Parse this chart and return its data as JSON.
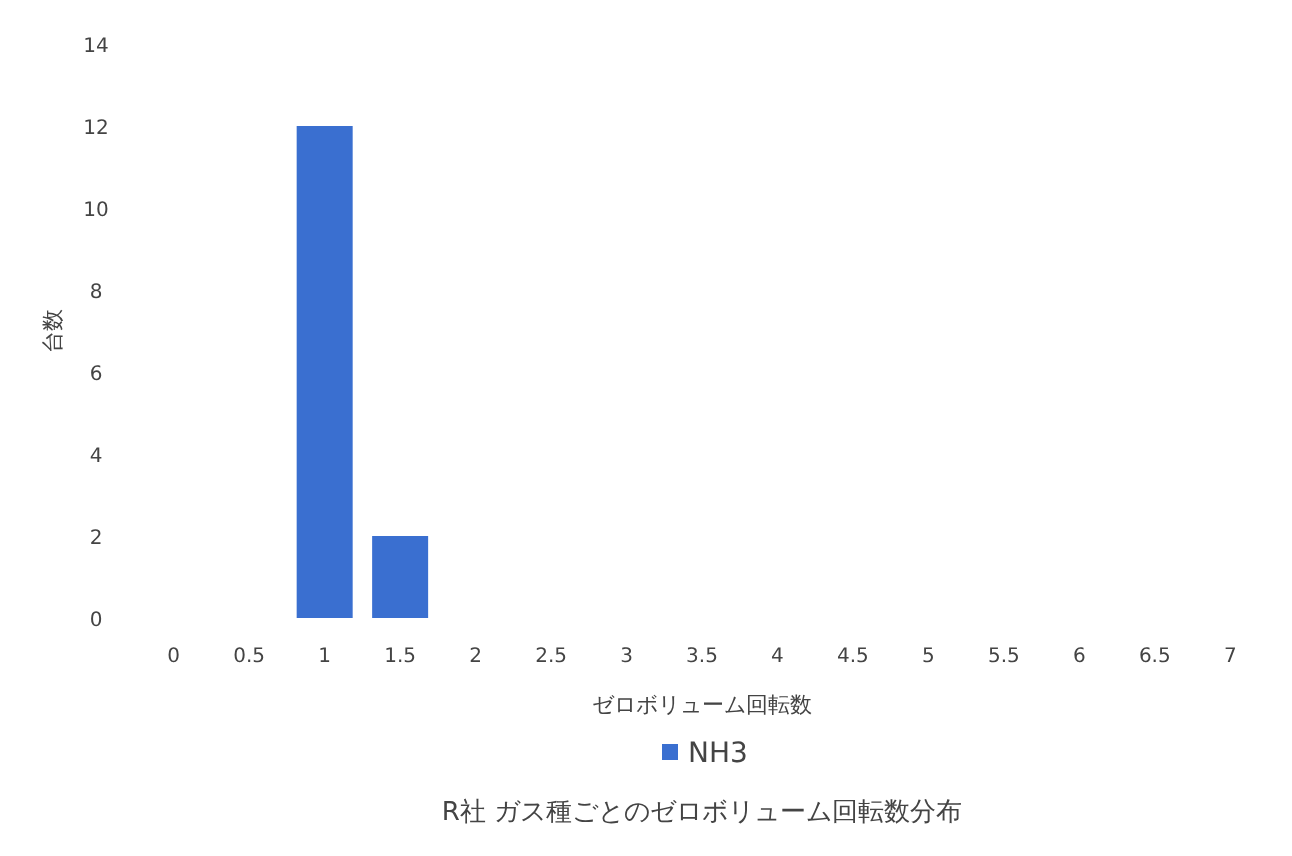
{
  "chart_data": {
    "type": "bar",
    "title": "R社 ガス種ごとのゼロボリューム回転数分布",
    "xlabel": "ゼロボリューム回転数",
    "ylabel": "台数",
    "categories": [
      "0",
      "0.5",
      "1",
      "1.5",
      "2",
      "2.5",
      "3",
      "3.5",
      "4",
      "4.5",
      "5",
      "5.5",
      "6",
      "6.5",
      "7"
    ],
    "series": [
      {
        "name": "NH3",
        "color": "#3a6fd0",
        "values": [
          0,
          0,
          12,
          2,
          0,
          0,
          0,
          0,
          0,
          0,
          0,
          0,
          0,
          0,
          0
        ]
      }
    ],
    "ylim": [
      0,
      14
    ],
    "yticks": [
      0,
      2,
      4,
      6,
      8,
      10,
      12,
      14
    ],
    "legend": "bottom",
    "grid": false
  }
}
